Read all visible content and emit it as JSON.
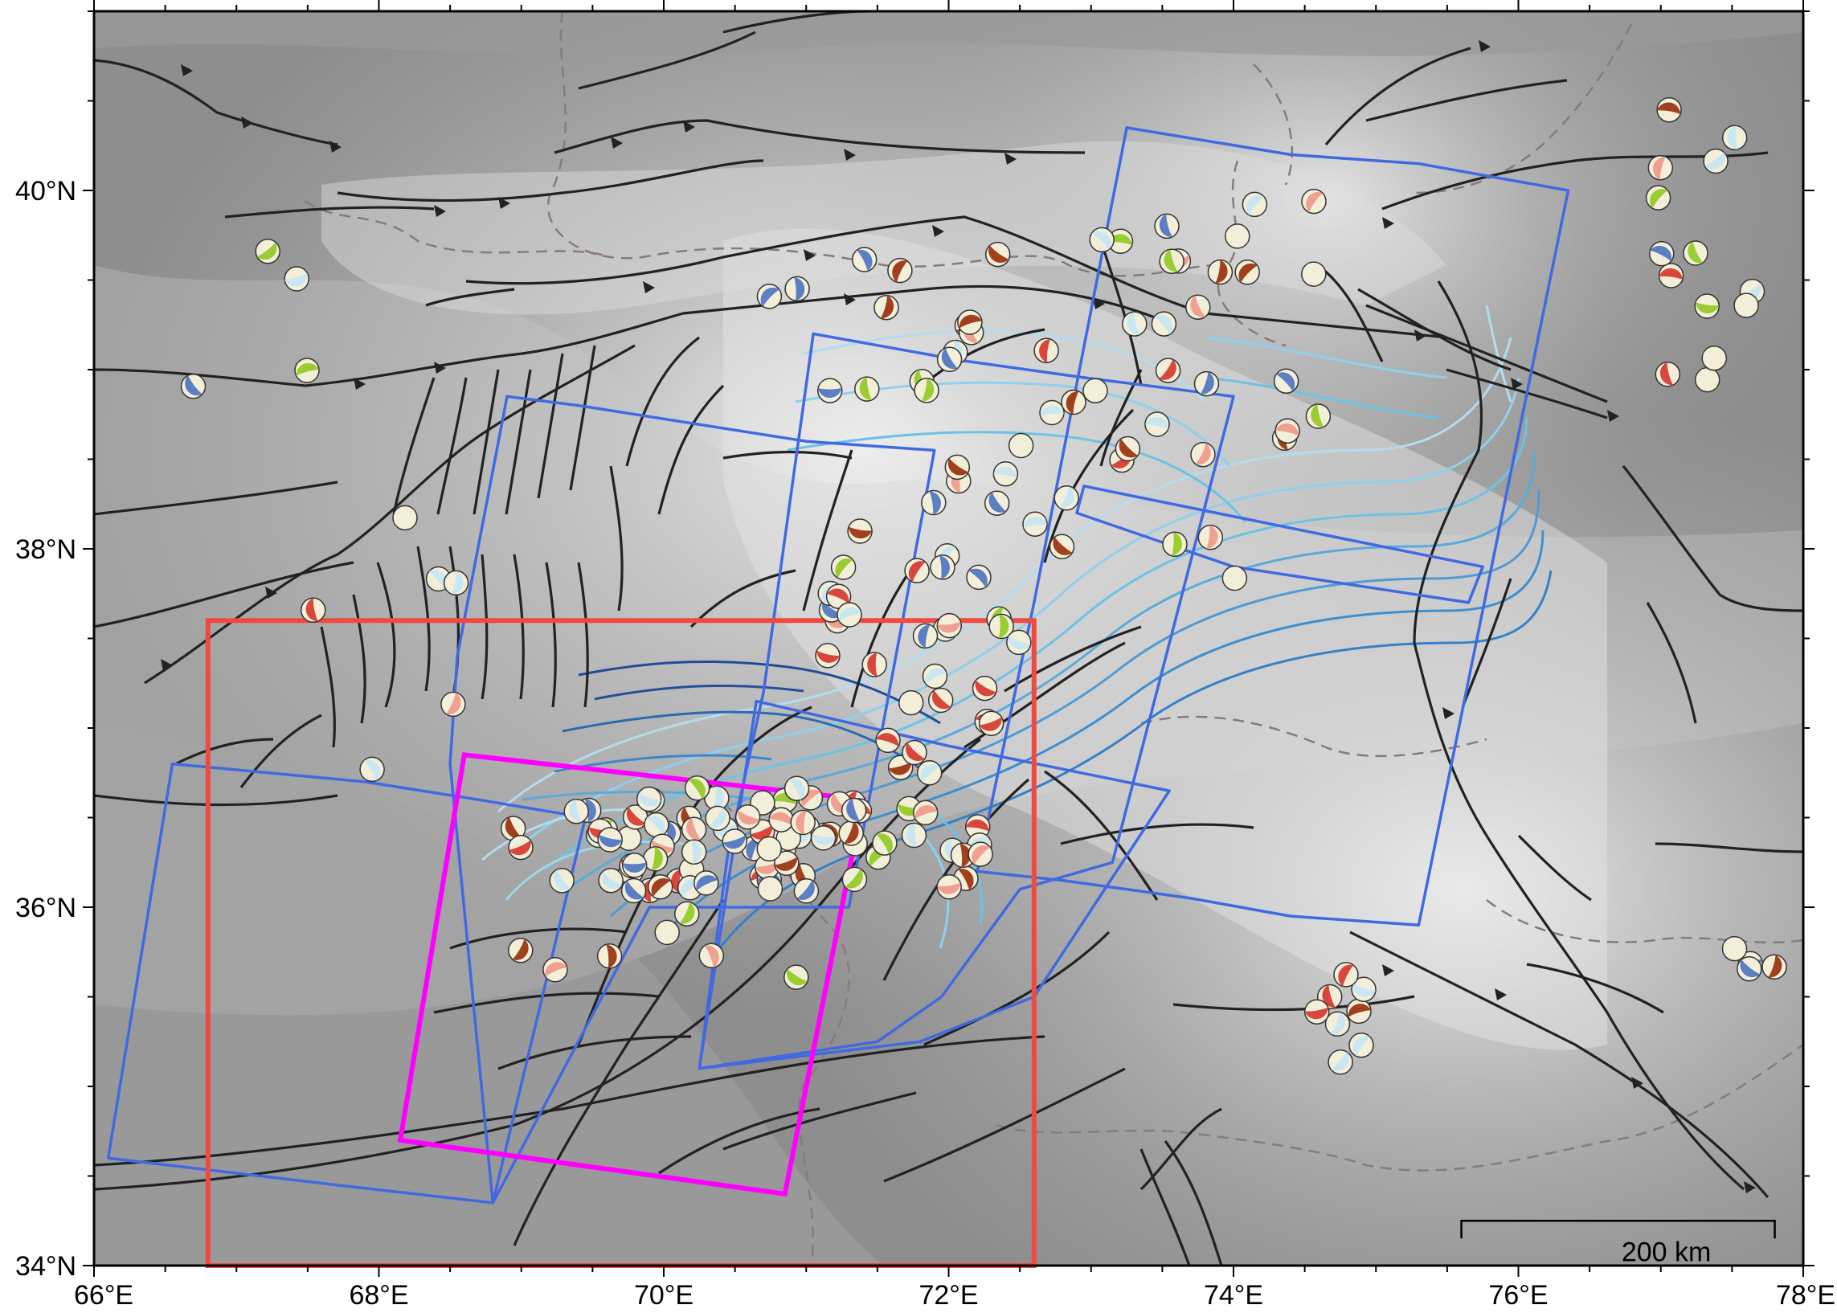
{
  "map": {
    "lon_range": [
      66,
      78
    ],
    "lat_range": [
      34,
      41
    ],
    "lon_ticks": [
      {
        "lon": 66,
        "label": "66°E"
      },
      {
        "lon": 68,
        "label": "68°E"
      },
      {
        "lon": 70,
        "label": "70°E"
      },
      {
        "lon": 72,
        "label": "72°E"
      },
      {
        "lon": 74,
        "label": "74°E"
      },
      {
        "lon": 76,
        "label": "76°E"
      },
      {
        "lon": 78,
        "label": "78°E"
      }
    ],
    "lat_ticks": [
      {
        "lat": 34,
        "label": "34°N"
      },
      {
        "lat": 36,
        "label": "36°N"
      },
      {
        "lat": 38,
        "label": "38°N"
      },
      {
        "lat": 40,
        "label": "40°N"
      }
    ],
    "scale_bar": {
      "label": "200 km",
      "km": 200,
      "lon_start": 75.6,
      "lon_end": 77.8,
      "lat": 34.25
    },
    "colors": {
      "frames": "#4169e1",
      "study_area": "#f04a40",
      "focus_area": "#ff00ff",
      "faults": "#222222",
      "borders": "#8a7a7a",
      "contours": [
        "#b3dcef",
        "#6cc3e6",
        "#3c8fd0",
        "#1f4d9a"
      ],
      "mechanisms": [
        "#c9e7f2",
        "#9acd32",
        "#f0a090",
        "#d9463b",
        "#5b7fc2",
        "#a0401d",
        "#f2eed8"
      ]
    },
    "study_area": [
      [
        66.8,
        37.6
      ],
      [
        72.6,
        37.6
      ],
      [
        72.6,
        34.0
      ],
      [
        66.8,
        34.0
      ]
    ],
    "focus_area": [
      [
        68.6,
        36.85
      ],
      [
        71.4,
        36.6
      ],
      [
        70.85,
        34.4
      ],
      [
        68.15,
        34.7
      ]
    ],
    "frames": [
      [
        [
          68.9,
          38.85
        ],
        [
          69.4,
          38.8
        ],
        [
          71.0,
          38.6
        ],
        [
          71.9,
          38.55
        ],
        [
          71.3,
          36.0
        ],
        [
          69.9,
          36.0
        ],
        [
          68.8,
          34.35
        ],
        [
          68.5,
          36.8
        ],
        [
          68.55,
          37.4
        ]
      ],
      [
        [
          71.05,
          39.2
        ],
        [
          72.1,
          39.05
        ],
        [
          73.0,
          38.95
        ],
        [
          74.0,
          38.85
        ],
        [
          73.15,
          36.25
        ],
        [
          72.5,
          36.1
        ],
        [
          71.95,
          35.5
        ],
        [
          71.5,
          35.25
        ],
        [
          70.25,
          35.1
        ],
        [
          70.45,
          36.3
        ],
        [
          70.7,
          37.2
        ]
      ],
      [
        [
          73.25,
          40.35
        ],
        [
          74.4,
          40.2
        ],
        [
          75.3,
          40.15
        ],
        [
          76.35,
          40.0
        ],
        [
          75.3,
          35.9
        ],
        [
          74.4,
          35.95
        ],
        [
          73.7,
          36.05
        ],
        [
          72.8,
          36.15
        ],
        [
          72.2,
          36.2
        ],
        [
          72.6,
          37.7
        ]
      ],
      [
        [
          66.55,
          36.8
        ],
        [
          67.9,
          36.7
        ],
        [
          68.7,
          36.6
        ],
        [
          69.45,
          36.5
        ],
        [
          68.8,
          34.35
        ],
        [
          67.7,
          34.45
        ],
        [
          66.1,
          34.6
        ]
      ],
      [
        [
          70.65,
          37.15
        ],
        [
          72.0,
          36.9
        ],
        [
          73.55,
          36.65
        ],
        [
          72.6,
          35.5
        ],
        [
          71.8,
          35.25
        ],
        [
          70.25,
          35.1
        ]
      ],
      [
        [
          72.95,
          38.35
        ],
        [
          74.5,
          38.1
        ],
        [
          75.75,
          37.9
        ],
        [
          75.65,
          37.7
        ],
        [
          74.0,
          37.9
        ],
        [
          72.9,
          38.2
        ]
      ]
    ]
  }
}
